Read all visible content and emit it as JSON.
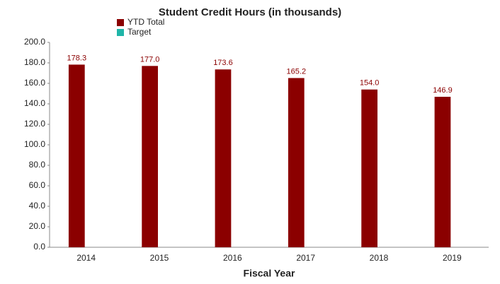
{
  "chart_data": {
    "type": "bar",
    "title": "Student Credit Hours (in thousands)",
    "x_label": "Fiscal Year",
    "categories": [
      "2014",
      "2015",
      "2016",
      "2017",
      "2018",
      "2019"
    ],
    "series": [
      {
        "name": "YTD Total",
        "color": "#8b0000",
        "values": [
          178.3,
          177.0,
          173.6,
          165.2,
          154.0,
          146.9
        ],
        "value_labels": [
          "178.3",
          "177.0",
          "173.6",
          "165.2",
          "154.0",
          "146.9"
        ]
      },
      {
        "name": "Target",
        "color": "#1fb5a8",
        "values": [
          null,
          null,
          null,
          null,
          null,
          null
        ]
      }
    ],
    "ylim": [
      0,
      200
    ],
    "yticks": [
      {
        "value": 0,
        "label": "0.0"
      },
      {
        "value": 20,
        "label": "20.0"
      },
      {
        "value": 40,
        "label": "40.0"
      },
      {
        "value": 60,
        "label": "60.0"
      },
      {
        "value": 80,
        "label": "80.0"
      },
      {
        "value": 100,
        "label": "100.0"
      },
      {
        "value": 120,
        "label": "120.0"
      },
      {
        "value": 140,
        "label": "140.0"
      },
      {
        "value": 160,
        "label": "160.0"
      },
      {
        "value": 180,
        "label": "180.0"
      },
      {
        "value": 200,
        "label": "200.0"
      }
    ],
    "grid": false
  }
}
